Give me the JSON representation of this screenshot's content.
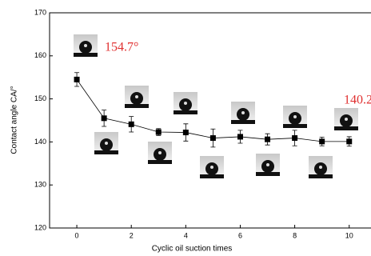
{
  "chart_data": {
    "type": "line",
    "x_label": "Cyclic oil suction times",
    "y_label": "Contact angle  CA/°",
    "x": [
      0,
      1,
      2,
      3,
      4,
      5,
      6,
      7,
      8,
      9,
      10
    ],
    "values": [
      154.5,
      145.5,
      144.1,
      142.3,
      142.2,
      140.9,
      141.2,
      140.6,
      140.9,
      140.1,
      140.1
    ],
    "errors": [
      1.6,
      1.9,
      1.8,
      0.8,
      2.0,
      2.1,
      1.5,
      1.3,
      1.8,
      1.0,
      1.1
    ],
    "color": "#000000",
    "annotations": [
      "154.7°",
      "140.2"
    ],
    "annotation_color": "#e03030",
    "xlim": [
      -1,
      10.8
    ],
    "ylim": [
      120,
      170
    ],
    "xticks": [
      0,
      2,
      4,
      6,
      8,
      10
    ],
    "yticks": [
      120,
      130,
      140,
      150,
      160,
      170
    ]
  }
}
